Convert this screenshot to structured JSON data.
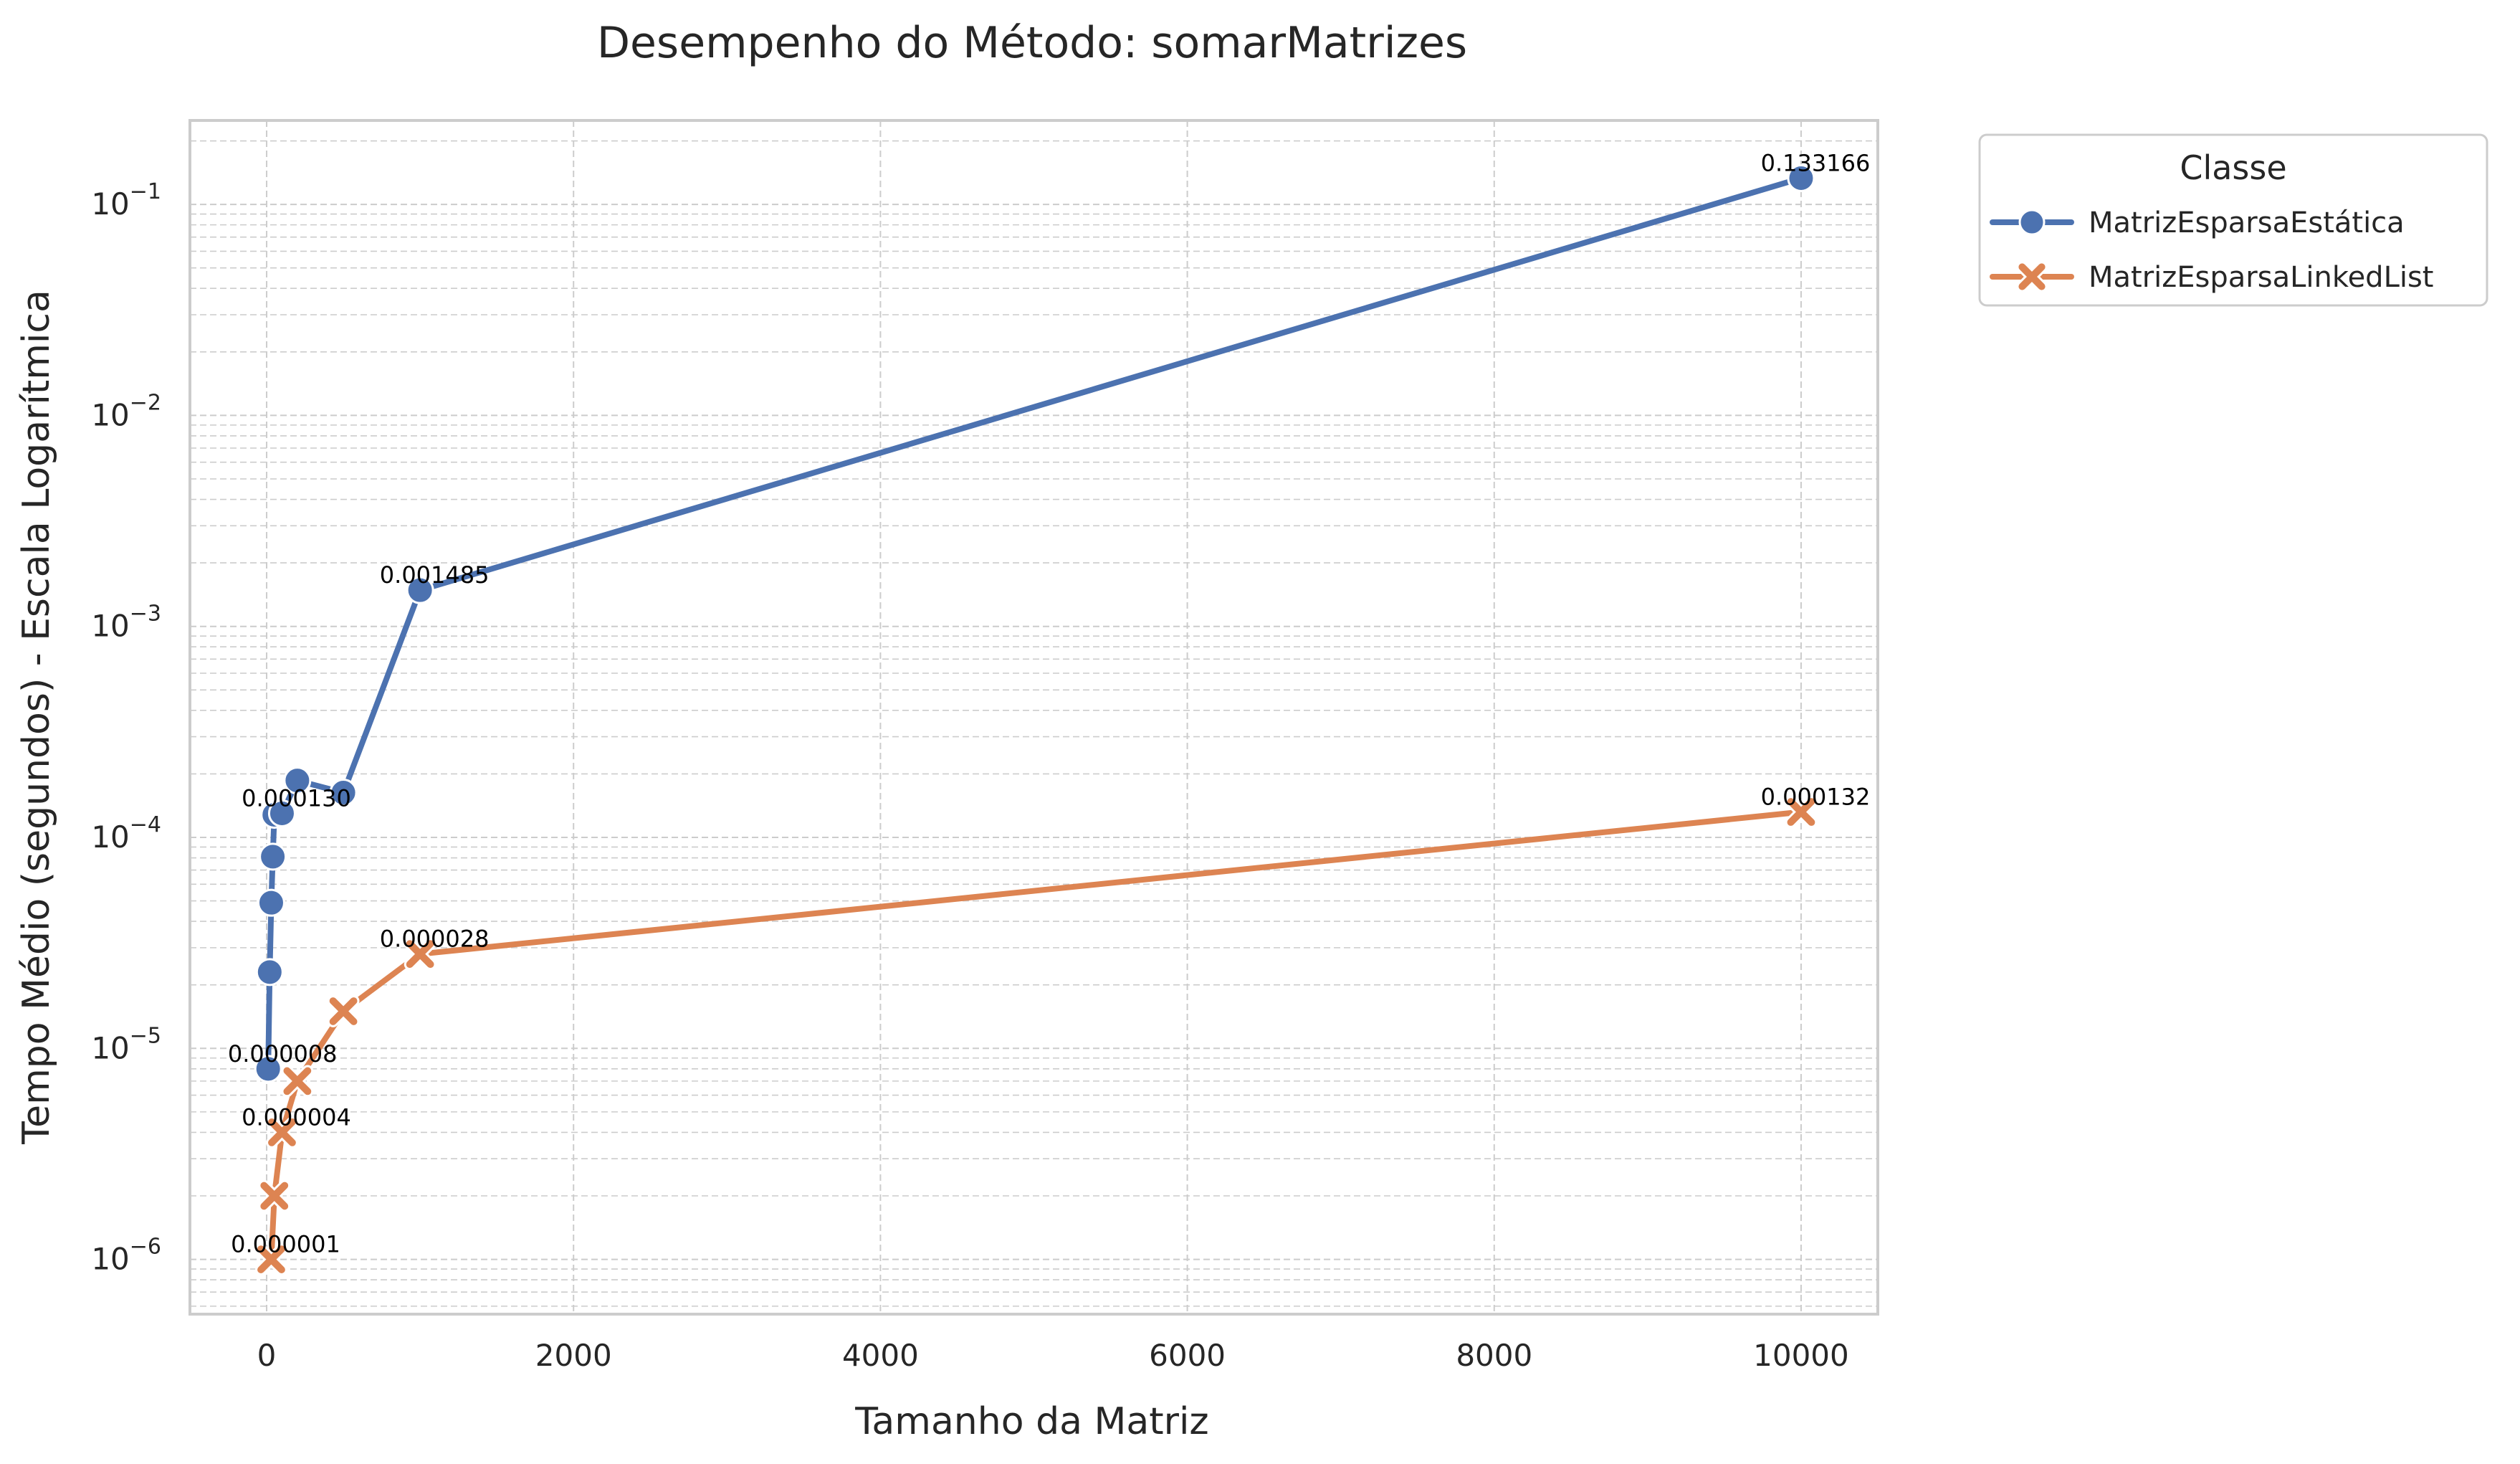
{
  "chart_data": {
    "type": "line",
    "title": "Desempenho do Método: somarMatrizes",
    "xlabel": "Tamanho da Matriz",
    "ylabel": "Tempo Médio (segundos) - Escala Logarítmica",
    "xlim": [
      -500,
      10500
    ],
    "ylim": [
      5.5e-07,
      0.25
    ],
    "yscale": "log",
    "x_ticks": [
      0,
      2000,
      4000,
      6000,
      8000,
      10000
    ],
    "x_tick_labels": [
      "0",
      "2000",
      "4000",
      "6000",
      "8000",
      "10000"
    ],
    "y_ticks": [
      1e-06,
      1e-05,
      0.0001,
      0.001,
      0.01,
      0.1
    ],
    "y_tick_labels": [
      {
        "base": "10",
        "exp": "−6"
      },
      {
        "base": "10",
        "exp": "−5"
      },
      {
        "base": "10",
        "exp": "−4"
      },
      {
        "base": "10",
        "exp": "−3"
      },
      {
        "base": "10",
        "exp": "−2"
      },
      {
        "base": "10",
        "exp": "−1"
      }
    ],
    "grid": true,
    "legend": {
      "title": "Classe",
      "position": "outside-top-right"
    },
    "series": [
      {
        "name": "MatrizEsparsaEstática",
        "color": "#4c72b0",
        "marker": "circle",
        "points": [
          {
            "x": 10,
            "y": 8e-06
          },
          {
            "x": 20,
            "y": 2.3e-05
          },
          {
            "x": 30,
            "y": 4.9e-05
          },
          {
            "x": 40,
            "y": 8.1e-05
          },
          {
            "x": 50,
            "y": 0.000128
          },
          {
            "x": 100,
            "y": 0.00013
          },
          {
            "x": 200,
            "y": 0.000186
          },
          {
            "x": 500,
            "y": 0.000163
          },
          {
            "x": 1000,
            "y": 0.001485
          },
          {
            "x": 10000,
            "y": 0.133166
          }
        ],
        "annotations": [
          {
            "x": 10,
            "y": 8e-06,
            "text": "0.000008"
          },
          {
            "x": 100,
            "y": 0.00013,
            "text": "0.000130"
          },
          {
            "x": 1000,
            "y": 0.001485,
            "text": "0.001485"
          },
          {
            "x": 10000,
            "y": 0.133166,
            "text": "0.133166"
          }
        ]
      },
      {
        "name": "MatrizEsparsaLinkedList",
        "color": "#dd8452",
        "marker": "x",
        "points": [
          {
            "x": 30,
            "y": 1e-06
          },
          {
            "x": 50,
            "y": 2e-06
          },
          {
            "x": 100,
            "y": 4e-06
          },
          {
            "x": 200,
            "y": 7e-06
          },
          {
            "x": 500,
            "y": 1.5e-05
          },
          {
            "x": 1000,
            "y": 2.8e-05
          },
          {
            "x": 10000,
            "y": 0.000132
          }
        ],
        "annotations": [
          {
            "x": 30,
            "y": 1e-06,
            "text": "0.000001"
          },
          {
            "x": 100,
            "y": 4e-06,
            "text": "0.000004"
          },
          {
            "x": 1000,
            "y": 2.8e-05,
            "text": "0.000028"
          },
          {
            "x": 10000,
            "y": 0.000132,
            "text": "0.000132"
          }
        ]
      }
    ]
  }
}
